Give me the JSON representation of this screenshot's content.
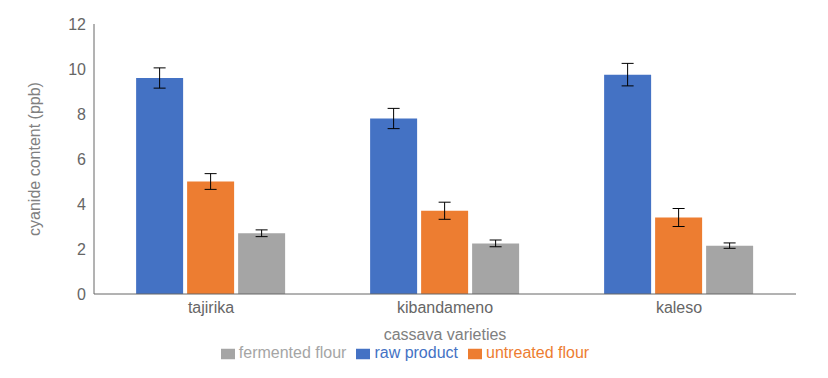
{
  "chart_data": {
    "type": "bar",
    "categories": [
      "tajirika",
      "kibandameno",
      "kaleso"
    ],
    "series": [
      {
        "name": "raw product",
        "color": "#4472C4",
        "values": [
          9.6,
          7.8,
          9.75
        ],
        "errors": [
          0.45,
          0.45,
          0.5
        ]
      },
      {
        "name": "untreated flour",
        "color": "#ED7D31",
        "values": [
          5.0,
          3.7,
          3.4
        ],
        "errors": [
          0.35,
          0.38,
          0.4
        ]
      },
      {
        "name": "fermented flour",
        "color": "#A5A5A5",
        "values": [
          2.7,
          2.25,
          2.15
        ],
        "errors": [
          0.15,
          0.15,
          0.12
        ]
      }
    ],
    "xlabel": "cassava varieties",
    "ylabel": "cyanide content (ppb)",
    "ylim": [
      0,
      12
    ],
    "yticks": [
      0,
      2,
      4,
      6,
      8,
      10,
      12
    ],
    "grid": false,
    "legend": "bottom"
  }
}
